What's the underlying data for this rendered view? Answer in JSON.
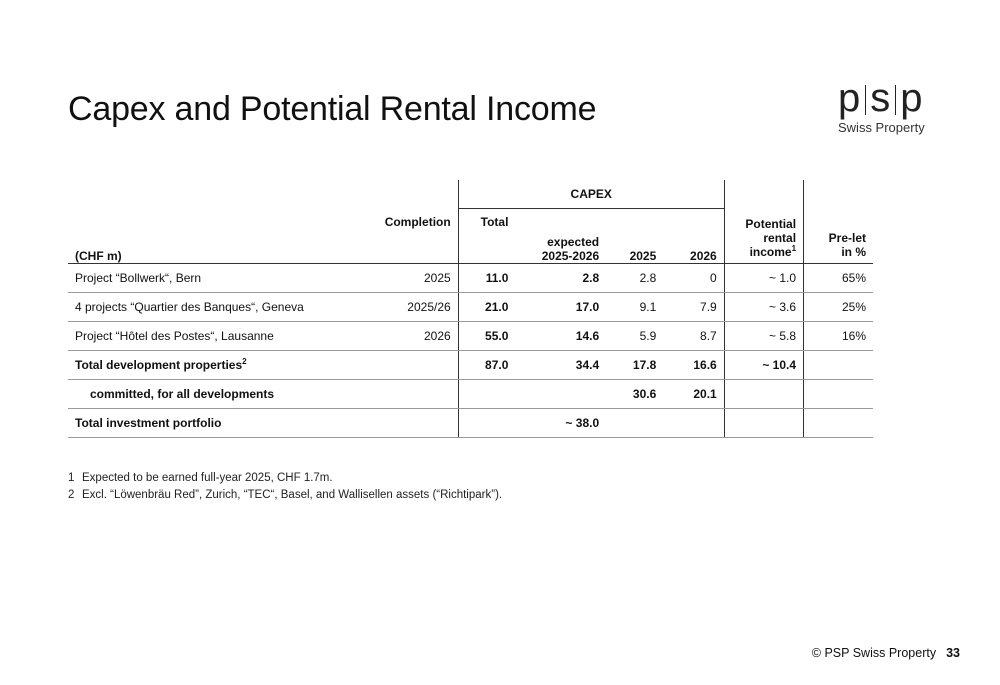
{
  "title": "Capex and Potential Rental Income",
  "logo": {
    "mark_left": "p",
    "mark_mid": "s",
    "mark_right": "p",
    "subtitle": "Swiss Property"
  },
  "table": {
    "header": {
      "unit": "(CHF m)",
      "completion": "Completion",
      "capex_group": "CAPEX",
      "total": "Total",
      "expected_l1": "expected",
      "expected_l2": "2025-2026",
      "y2025": "2025",
      "y2026": "2026",
      "rental_l1": "Potential",
      "rental_l2": "rental",
      "rental_l3": "income",
      "rental_sup": "1",
      "prelet_l1": "Pre-let",
      "prelet_l2": "in %"
    },
    "rows": [
      {
        "name": "Project “Bollwerk“, Bern",
        "completion": "2025",
        "total": "11.0",
        "expected": "2.8",
        "y2025": "2.8",
        "y2026": "0",
        "rental": "~ 1.0",
        "prelet": "65%"
      },
      {
        "name": "4 projects “Quartier des Banques“, Geneva",
        "completion": "2025/26",
        "total": "21.0",
        "expected": "17.0",
        "y2025": "9.1",
        "y2026": "7.9",
        "rental": "~ 3.6",
        "prelet": "25%"
      },
      {
        "name": "Project “Hôtel des Postes“, Lausanne",
        "completion": "2026",
        "total": "55.0",
        "expected": "14.6",
        "y2025": "5.9",
        "y2026": "8.7",
        "rental": "~ 5.8",
        "prelet": "16%"
      }
    ],
    "total_dev": {
      "name": "Total development properties",
      "sup": "2",
      "total": "87.0",
      "expected": "34.4",
      "y2025": "17.8",
      "y2026": "16.6",
      "rental": "~ 10.4"
    },
    "committed": {
      "name": "committed, for all developments",
      "y2025": "30.6",
      "y2026": "20.1"
    },
    "total_inv": {
      "name": "Total investment portfolio",
      "expected": "~ 38.0"
    }
  },
  "footnotes": [
    {
      "n": "1",
      "text": "Expected to be earned full-year 2025, CHF 1.7m."
    },
    {
      "n": "2",
      "text": "Excl. “Löwenbräu Red”, Zurich, “TEC“, Basel, and Wallisellen assets (“Richtipark”)."
    }
  ],
  "footer": {
    "copyright": "© PSP Swiss Property",
    "page": "33"
  }
}
